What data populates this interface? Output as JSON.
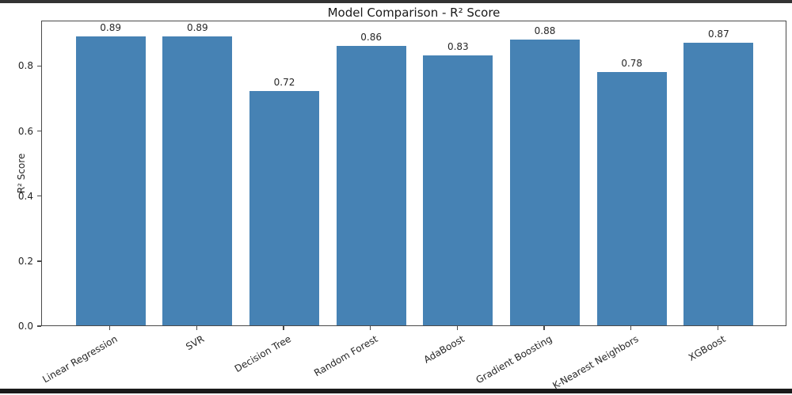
{
  "window": {
    "top_border_color": "#333333",
    "bottom_border_color": "#1a1a1a",
    "background_color": "#ffffff"
  },
  "chart_data": {
    "type": "bar",
    "title": "Model Comparison - R² Score",
    "ylabel": "R² Score",
    "xlabel": "",
    "categories": [
      "Linear Regression",
      "SVR",
      "Decision Tree",
      "Random Forest",
      "AdaBoost",
      "Gradient Boosting",
      "K-Nearest Neighbors",
      "XGBoost"
    ],
    "values": [
      0.89,
      0.89,
      0.72,
      0.86,
      0.83,
      0.88,
      0.78,
      0.87
    ],
    "value_labels": [
      "0.89",
      "0.89",
      "0.72",
      "0.86",
      "0.83",
      "0.88",
      "0.78",
      "0.87"
    ],
    "ytick_values": [
      0.0,
      0.2,
      0.4,
      0.6,
      0.8
    ],
    "ytick_labels": [
      "0.0",
      "0.2",
      "0.4",
      "0.6",
      "0.8"
    ],
    "ylim": [
      0,
      0.94
    ],
    "bar_color": "#4682b4",
    "grid": false,
    "legend_position": "none",
    "x_tick_rotation_deg": 30
  }
}
